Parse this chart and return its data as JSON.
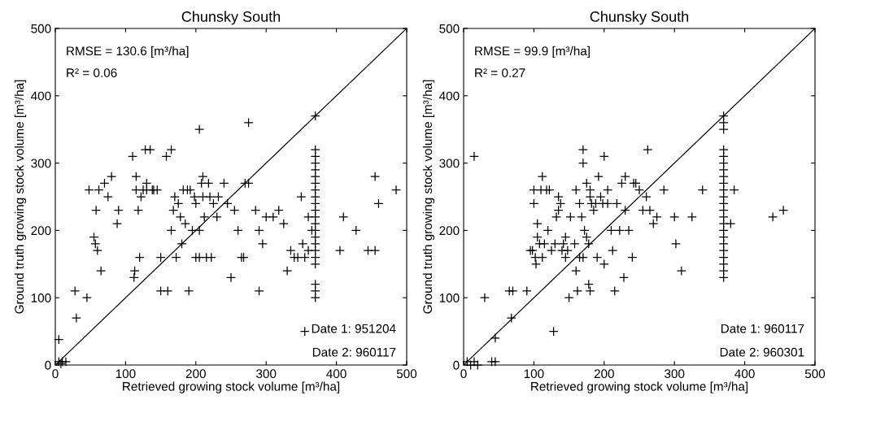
{
  "chart_data": [
    {
      "type": "scatter",
      "title": "Chunsky South",
      "xlabel": "Retrieved growing stock volume [m³/ha]",
      "ylabel": "Ground truth growing stock volume [m³/ha]",
      "xlim": [
        0,
        500
      ],
      "ylim": [
        0,
        500
      ],
      "xticks": [
        0,
        100,
        200,
        300,
        400,
        500
      ],
      "yticks": [
        0,
        100,
        200,
        300,
        400,
        500
      ],
      "grid": false,
      "marker": "cross",
      "annotations": [
        "RMSE = 130.6 [m³/ha]",
        "R² = 0.06",
        "Date 1: 951204",
        "Date 2: 960117"
      ],
      "series": [
        {
          "color": "#000000",
          "x": [
            5,
            5,
            8,
            10,
            15,
            28,
            30,
            45,
            48,
            55,
            57,
            58,
            60,
            62,
            65,
            70,
            75,
            80,
            88,
            90,
            110,
            112,
            113,
            115,
            115,
            118,
            120,
            122,
            125,
            128,
            130,
            130,
            135,
            138,
            140,
            145,
            150,
            150,
            160,
            158,
            165,
            165,
            168,
            170,
            172,
            175,
            178,
            180,
            182,
            185,
            188,
            190,
            192,
            195,
            198,
            200,
            200,
            205,
            205,
            205,
            208,
            210,
            210,
            212,
            215,
            218,
            220,
            222,
            225,
            230,
            232,
            240,
            245,
            250,
            255,
            260,
            265,
            268,
            270,
            275,
            275,
            285,
            290,
            290,
            295,
            300,
            310,
            318,
            325,
            330,
            335,
            340,
            345,
            350,
            352,
            355,
            360,
            360,
            365,
            410,
            405,
            428,
            445,
            455,
            455,
            460,
            485,
            355,
            370,
            370,
            370,
            370,
            370,
            370,
            370,
            370,
            370,
            370,
            370,
            370,
            370,
            370,
            370,
            370,
            370,
            370,
            370,
            370,
            370,
            370
          ],
          "values": [
            38,
            5,
            2,
            5,
            5,
            110,
            70,
            100,
            260,
            190,
            180,
            230,
            170,
            260,
            140,
            270,
            250,
            280,
            210,
            230,
            310,
            130,
            140,
            260,
            280,
            230,
            160,
            250,
            260,
            320,
            270,
            260,
            320,
            260,
            260,
            260,
            160,
            110,
            110,
            310,
            320,
            200,
            230,
            250,
            160,
            240,
            220,
            180,
            260,
            210,
            260,
            110,
            260,
            200,
            250,
            240,
            160,
            350,
            200,
            160,
            270,
            280,
            250,
            220,
            160,
            270,
            250,
            160,
            240,
            220,
            250,
            270,
            240,
            130,
            230,
            200,
            160,
            160,
            270,
            360,
            270,
            230,
            200,
            110,
            180,
            220,
            220,
            230,
            210,
            140,
            170,
            160,
            160,
            250,
            180,
            160,
            170,
            220,
            200,
            220,
            170,
            200,
            170,
            280,
            170,
            240,
            260,
            50,
            370,
            320,
            310,
            300,
            290,
            280,
            270,
            260,
            250,
            240,
            230,
            220,
            210,
            200,
            190,
            180,
            170,
            160,
            150,
            120,
            110,
            100
          ]
        },
        {
          "type": "line",
          "color": "#000000",
          "marker": "none",
          "x": [
            0,
            500
          ],
          "values": [
            0,
            500
          ]
        }
      ]
    },
    {
      "type": "scatter",
      "title": "Chunsky South",
      "xlabel": "Retrieved growing stock volume [m³/ha]",
      "ylabel": "Ground truth growing stock volume [m³/ha]",
      "xlim": [
        0,
        500
      ],
      "ylim": [
        0,
        500
      ],
      "xticks": [
        0,
        100,
        200,
        300,
        400,
        500
      ],
      "yticks": [
        0,
        100,
        200,
        300,
        400,
        500
      ],
      "grid": false,
      "marker": "cross",
      "annotations": [
        "RMSE = 99.9 [m³/ha]",
        "R² = 0.27",
        "Date 1: 960117",
        "Date 2: 960301"
      ],
      "series": [
        {
          "color": "#000000",
          "x": [
            5,
            10,
            15,
            15,
            20,
            30,
            40,
            45,
            45,
            65,
            68,
            70,
            90,
            95,
            98,
            100,
            100,
            102,
            103,
            105,
            105,
            108,
            110,
            112,
            112,
            115,
            118,
            120,
            122,
            125,
            128,
            130,
            132,
            135,
            135,
            138,
            140,
            142,
            145,
            145,
            148,
            150,
            152,
            158,
            160,
            160,
            162,
            165,
            165,
            168,
            170,
            170,
            170,
            172,
            175,
            175,
            178,
            178,
            180,
            180,
            180,
            182,
            185,
            188,
            190,
            192,
            195,
            198,
            200,
            200,
            205,
            205,
            210,
            212,
            215,
            218,
            222,
            225,
            228,
            230,
            230,
            235,
            240,
            242,
            245,
            250,
            255,
            260,
            262,
            265,
            270,
            275,
            285,
            300,
            302,
            310,
            325,
            340,
            385,
            380,
            440,
            455,
            370,
            370,
            370,
            370,
            370,
            370,
            370,
            370,
            370,
            370,
            370,
            370,
            370,
            370,
            370,
            370,
            370,
            370,
            370,
            370,
            370,
            370,
            370
          ],
          "values": [
            5,
            0,
            310,
            5,
            0,
            100,
            5,
            40,
            5,
            110,
            70,
            110,
            110,
            170,
            170,
            260,
            240,
            160,
            150,
            210,
            190,
            180,
            260,
            280,
            160,
            180,
            260,
            200,
            260,
            170,
            50,
            180,
            220,
            250,
            230,
            240,
            170,
            180,
            190,
            160,
            170,
            100,
            220,
            180,
            140,
            260,
            110,
            240,
            160,
            220,
            320,
            300,
            160,
            200,
            190,
            270,
            120,
            180,
            110,
            250,
            260,
            240,
            230,
            240,
            160,
            280,
            250,
            240,
            310,
            150,
            240,
            260,
            200,
            170,
            110,
            240,
            200,
            270,
            130,
            280,
            230,
            200,
            160,
            270,
            270,
            260,
            230,
            250,
            320,
            230,
            210,
            220,
            260,
            220,
            180,
            140,
            220,
            260,
            260,
            210,
            220,
            230,
            370,
            360,
            350,
            320,
            310,
            300,
            290,
            280,
            270,
            260,
            250,
            240,
            230,
            220,
            210,
            200,
            190,
            180,
            170,
            160,
            150,
            140,
            130
          ]
        },
        {
          "type": "line",
          "color": "#000000",
          "marker": "none",
          "x": [
            0,
            500
          ],
          "values": [
            0,
            500
          ]
        }
      ]
    }
  ]
}
